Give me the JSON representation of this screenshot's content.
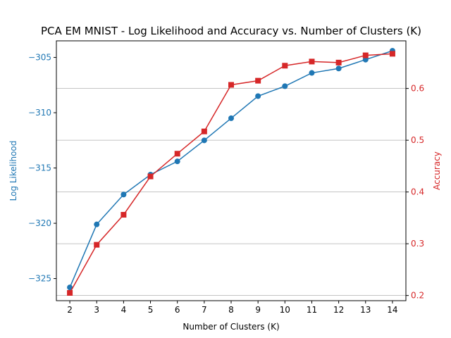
{
  "chart_data": {
    "type": "line",
    "title": "PCA EM MNIST - Log Likelihood and Accuracy vs. Number of Clusters (K)",
    "xlabel": "Number of Clusters (K)",
    "x": [
      2,
      3,
      4,
      5,
      6,
      7,
      8,
      9,
      10,
      11,
      12,
      13,
      14
    ],
    "xlim": [
      1.5,
      14.5
    ],
    "grid": "right-axis horizontal",
    "series": [
      {
        "axis": "left",
        "ylabel": "Log Likelihood",
        "color": "#1f77b4",
        "marker": "circle",
        "ylim": [
          -327,
          -303.5
        ],
        "yticks": [
          -325,
          -320,
          -315,
          -310,
          -305
        ],
        "ytick_labels": [
          "−325",
          "−320",
          "−315",
          "−310",
          "−305"
        ],
        "values": [
          -325.8,
          -320.1,
          -317.4,
          -315.6,
          -314.4,
          -312.5,
          -310.5,
          -308.5,
          -307.6,
          -306.4,
          -306.0,
          -305.2,
          -304.4
        ]
      },
      {
        "axis": "right",
        "ylabel": "Accuracy",
        "color": "#d62728",
        "marker": "square",
        "ylim": [
          0.19,
          0.692
        ],
        "yticks": [
          0.2,
          0.3,
          0.4,
          0.5,
          0.6
        ],
        "ytick_labels": [
          "0.2",
          "0.3",
          "0.4",
          "0.5",
          "0.6"
        ],
        "values": [
          0.205,
          0.298,
          0.356,
          0.43,
          0.474,
          0.517,
          0.607,
          0.615,
          0.644,
          0.652,
          0.65,
          0.664,
          0.667
        ]
      }
    ]
  }
}
